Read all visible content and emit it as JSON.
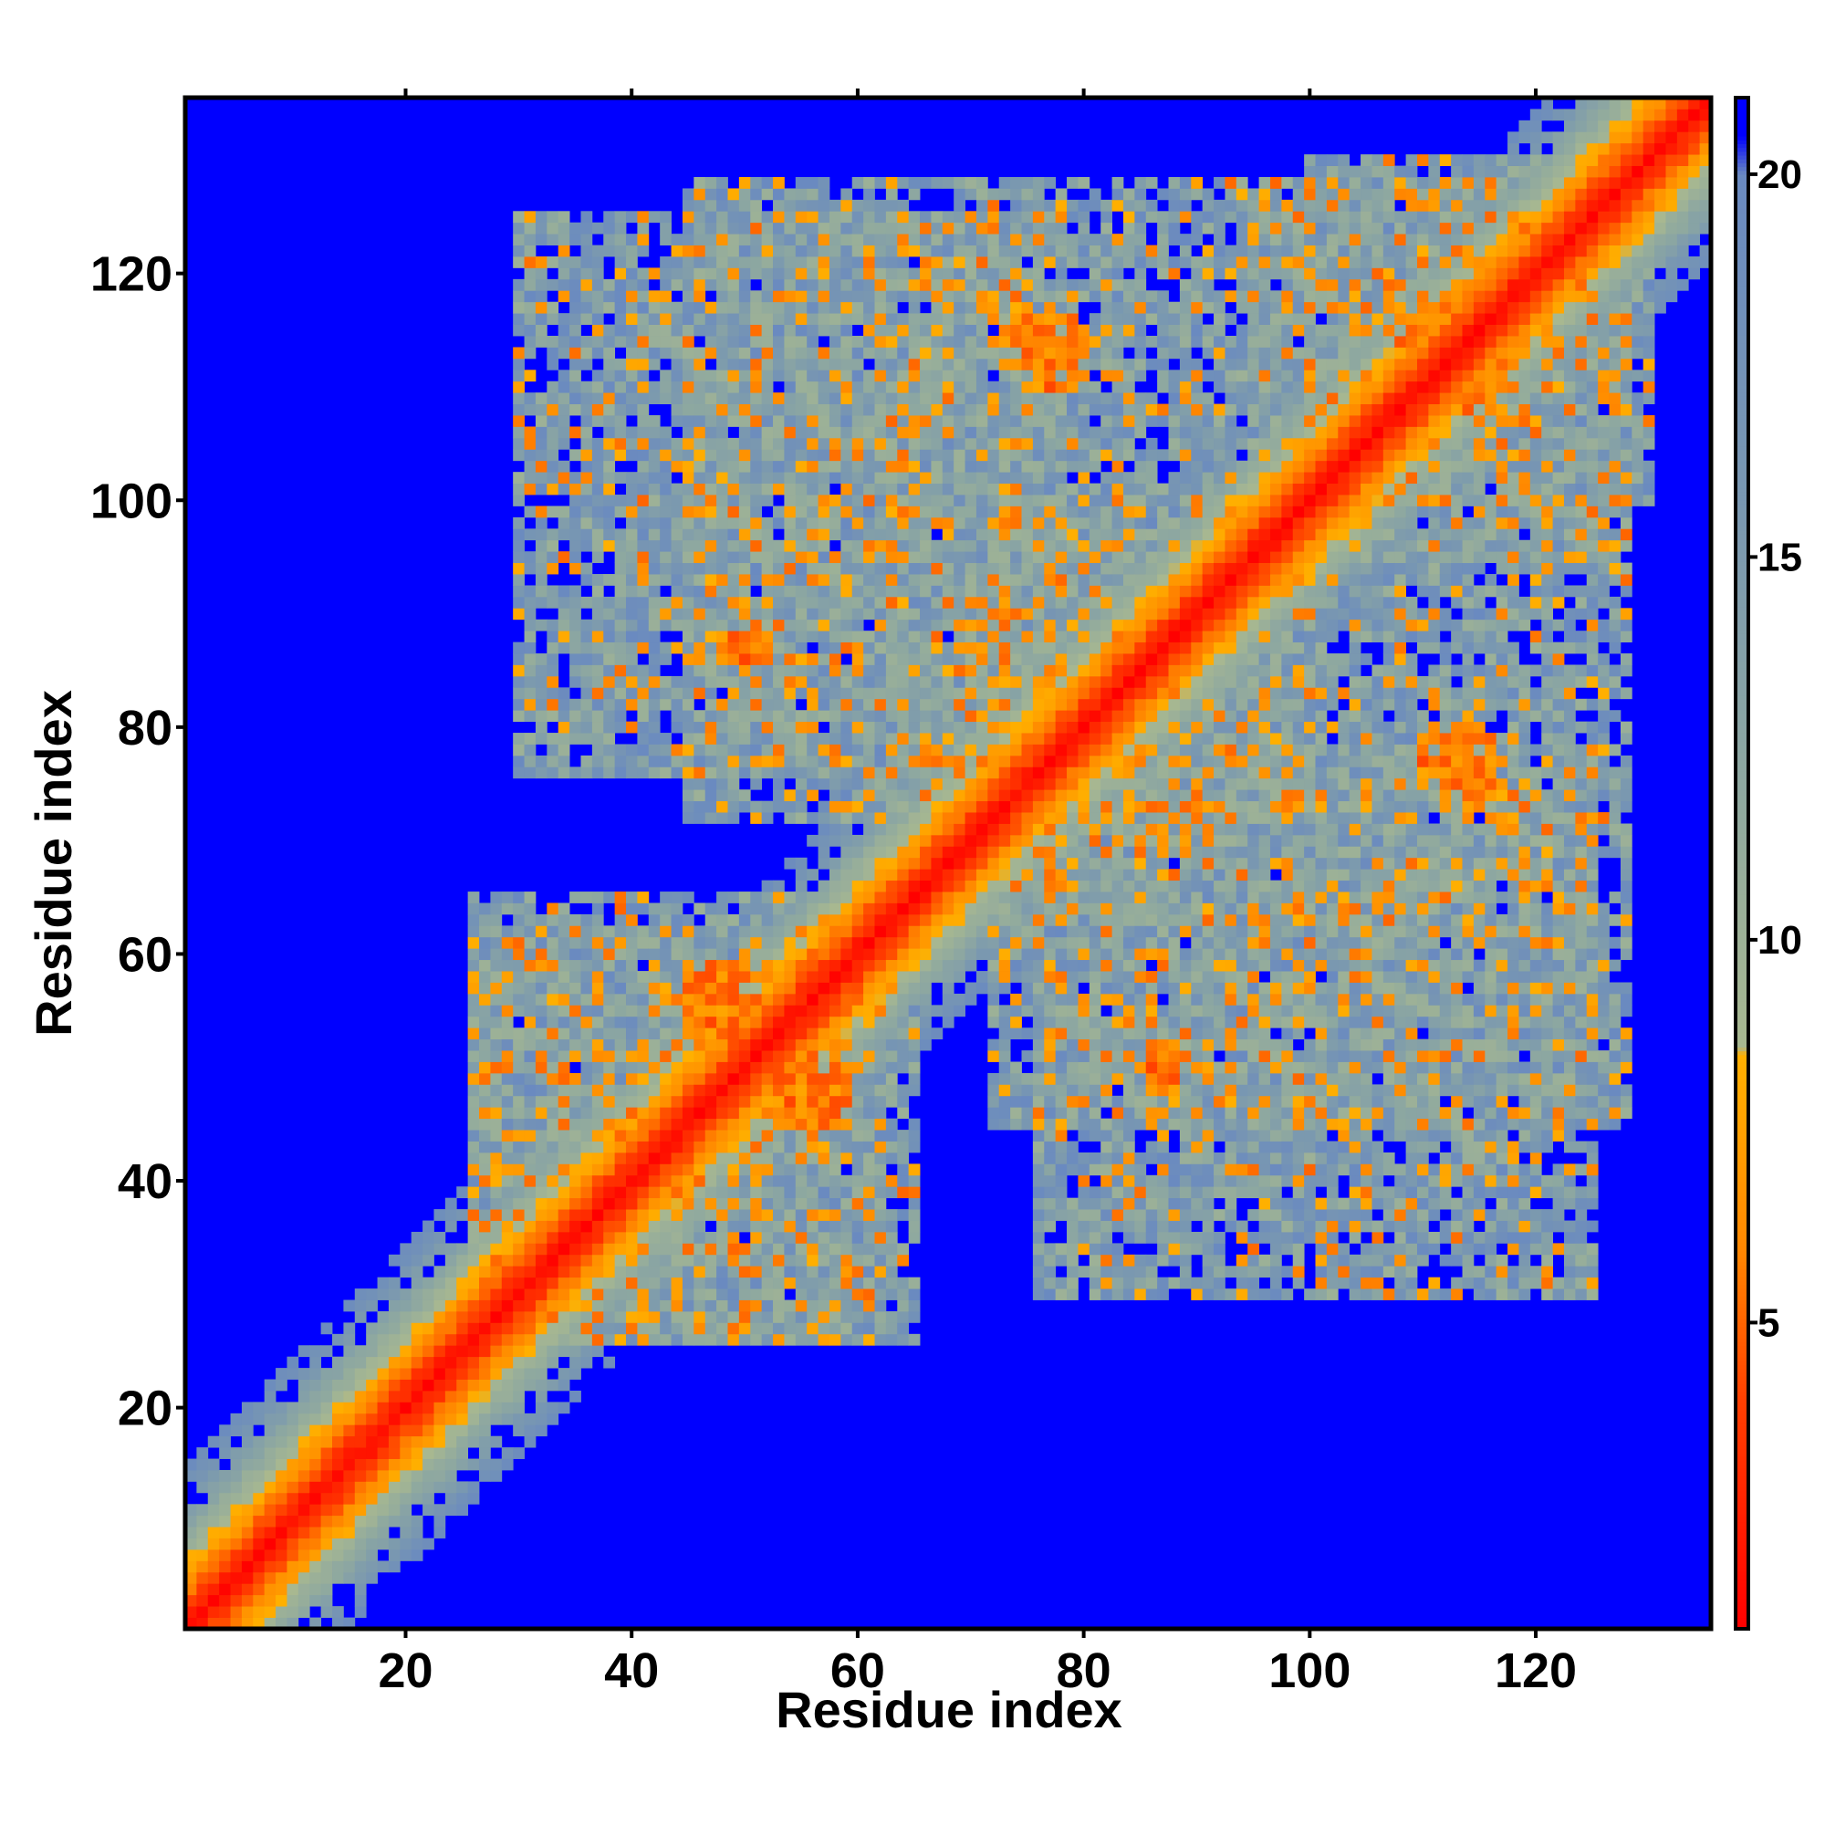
{
  "chart_data": {
    "type": "heatmap",
    "title": "",
    "xlabel": "Residue index",
    "ylabel": "Residue index",
    "n_residues": 135,
    "xlim": [
      1,
      135
    ],
    "ylim": [
      1,
      135
    ],
    "x_ticks": [
      20,
      40,
      60,
      80,
      100,
      120
    ],
    "y_ticks": [
      20,
      40,
      60,
      80,
      100,
      120
    ],
    "colorbar": {
      "range": [
        1,
        21
      ],
      "ticks": [
        5,
        10,
        15,
        20
      ],
      "stops": [
        {
          "value": 1,
          "color": "#ff0000"
        },
        {
          "value": 4,
          "color": "#ff4000"
        },
        {
          "value": 6,
          "color": "#ff8800"
        },
        {
          "value": 8.5,
          "color": "#ffb000"
        },
        {
          "value": 8.6,
          "color": "#a8b890"
        },
        {
          "value": 12,
          "color": "#8ea8a0"
        },
        {
          "value": 15.5,
          "color": "#7a98b0"
        },
        {
          "value": 20,
          "color": "#6a8ac0"
        },
        {
          "value": 20.5,
          "color": "#0000ff"
        },
        {
          "value": 21,
          "color": "#0000ff"
        }
      ]
    },
    "background_color": "#0000ff",
    "contact_regions": [
      {
        "description": "main diagonal band",
        "i": [
          1,
          135
        ],
        "j": [
          1,
          135
        ],
        "distance": "1-5"
      },
      {
        "description": "N-terminal cluster",
        "i": [
          26,
          62
        ],
        "j": [
          26,
          65
        ],
        "typical_value": 13
      },
      {
        "description": "central cluster",
        "i": [
          45,
          100
        ],
        "j": [
          72,
          128
        ],
        "typical_value": 14
      },
      {
        "description": "C-terminal cluster",
        "i": [
          100,
          128
        ],
        "j": [
          95,
          130
        ],
        "typical_value": 14
      },
      {
        "description": "off-diagonal block lower-right",
        "i": [
          76,
          125
        ],
        "j": [
          30,
          78
        ],
        "typical_value": 14
      },
      {
        "description": "hotspot",
        "i": [
          45,
          52
        ],
        "j": [
          53,
          59
        ],
        "typical_value": 6
      },
      {
        "description": "hotspot",
        "i": [
          53,
          58
        ],
        "j": [
          45,
          50
        ],
        "typical_value": 6
      },
      {
        "description": "hotspot",
        "i": [
          75,
          80
        ],
        "j": [
          110,
          115
        ],
        "typical_value": 6
      },
      {
        "description": "hotspot",
        "i": [
          108,
          114
        ],
        "j": [
          110,
          117
        ],
        "typical_value": 6
      },
      {
        "description": "hotspot",
        "i": [
          112,
          116
        ],
        "j": [
          73,
          79
        ],
        "typical_value": 6
      },
      {
        "description": "hotspot",
        "i": [
          86,
          88
        ],
        "j": [
          49,
          52
        ],
        "typical_value": 6
      },
      {
        "description": "hotspot",
        "i": [
          48,
          51
        ],
        "j": [
          86,
          88
        ],
        "typical_value": 6
      }
    ]
  }
}
